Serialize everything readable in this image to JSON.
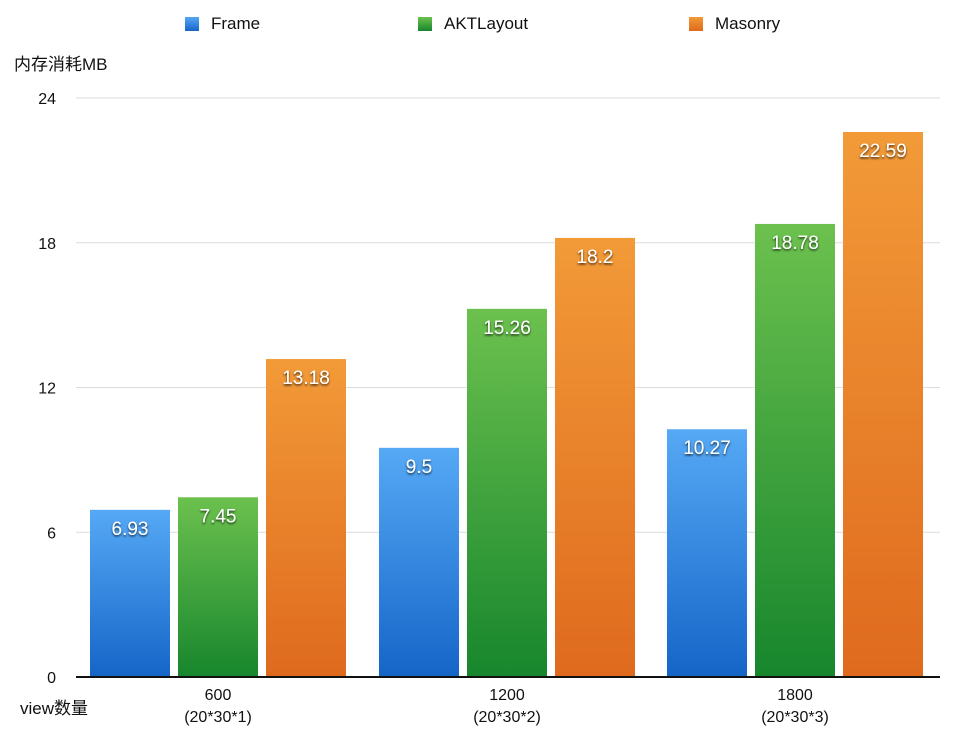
{
  "chart_data": {
    "type": "bar",
    "title": "",
    "ylabel": "内存消耗MB",
    "xlabel": "view数量",
    "ylim": [
      0,
      24
    ],
    "yticks": [
      0,
      6,
      12,
      18,
      24
    ],
    "grid": true,
    "legend_position": "top",
    "categories": [
      {
        "line1": "600",
        "line2": "(20*30*1)"
      },
      {
        "line1": "1200",
        "line2": "(20*30*2)"
      },
      {
        "line1": "1800",
        "line2": "(20*30*3)"
      }
    ],
    "series": [
      {
        "name": "Frame",
        "values": [
          6.93,
          9.5,
          10.27
        ],
        "labels": [
          "6.93",
          "9.5",
          "10.27"
        ],
        "color": "#2f86e0",
        "color_light": "#56a9f5",
        "color_dark": "#1565c8"
      },
      {
        "name": "AKTLayout",
        "values": [
          7.45,
          15.26,
          18.78
        ],
        "labels": [
          "7.45",
          "15.26",
          "18.78"
        ],
        "color": "#3fa43a",
        "color_light": "#6cc14e",
        "color_dark": "#17862d"
      },
      {
        "name": "Masonry",
        "values": [
          13.18,
          18.2,
          22.59
        ],
        "labels": [
          "13.18",
          "18.2",
          "22.59"
        ],
        "color": "#ea7e26",
        "color_light": "#f29a38",
        "color_dark": "#df6a1e"
      }
    ]
  }
}
